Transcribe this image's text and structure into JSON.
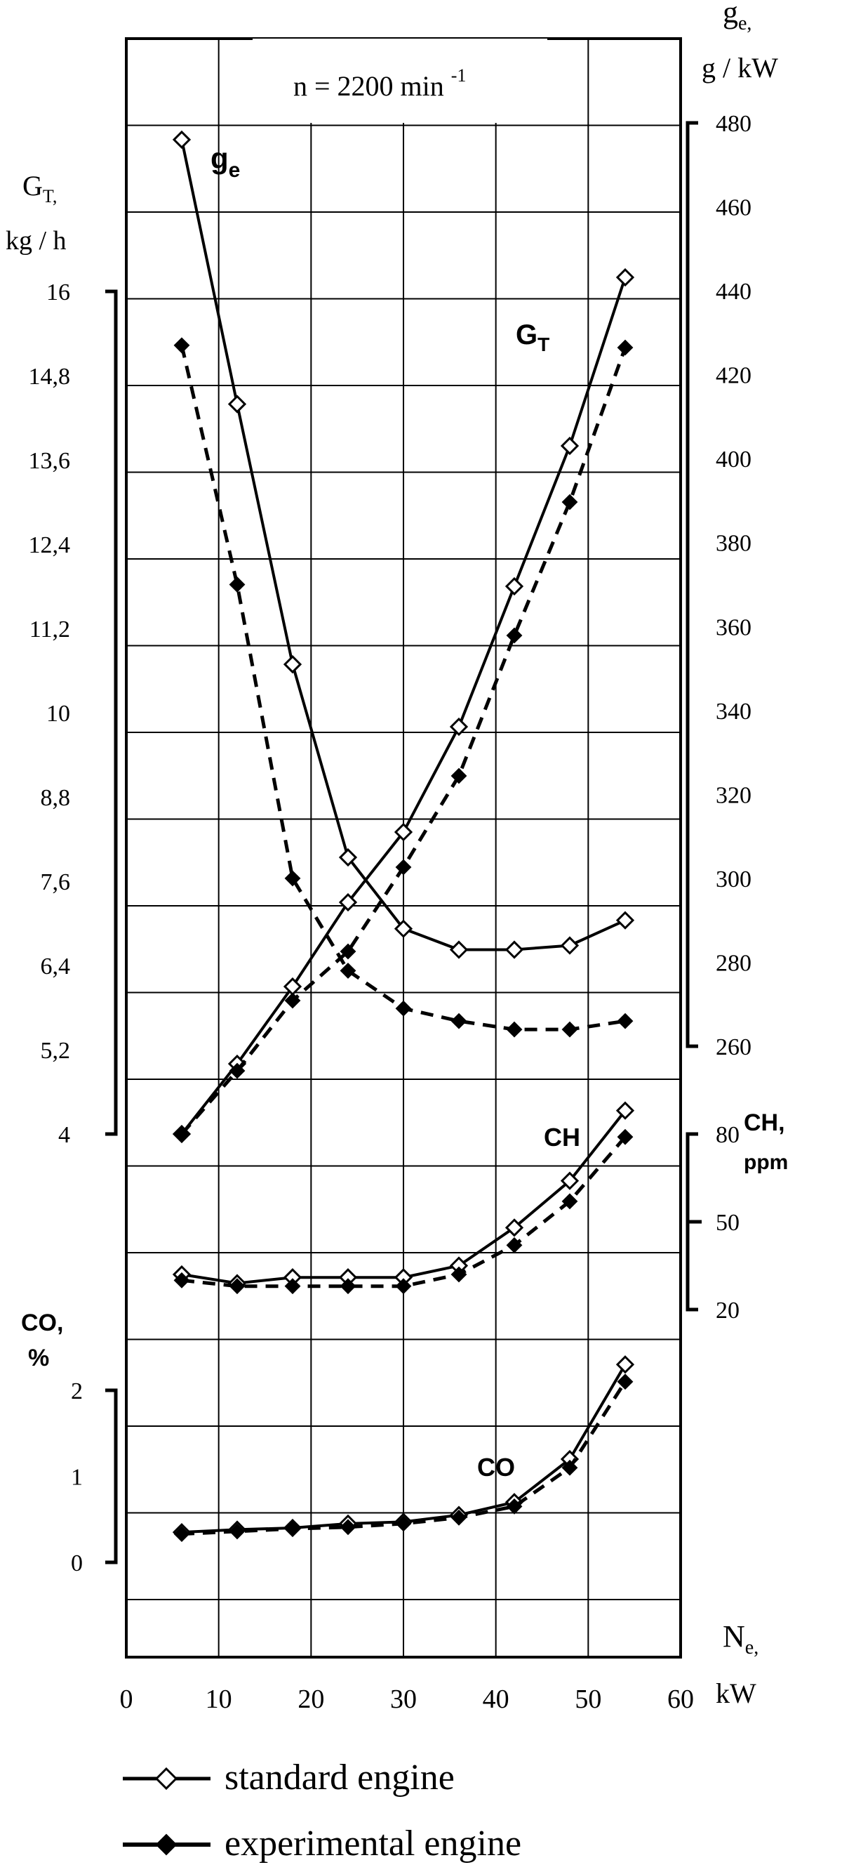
{
  "chart_data": {
    "type": "line",
    "title": "n = 2200  min",
    "title_sup": "-1",
    "x": [
      6,
      12,
      18,
      24,
      30,
      36,
      42,
      48,
      54
    ],
    "x_ticks": [
      "0",
      "10",
      "20",
      "30",
      "40",
      "50",
      "60"
    ],
    "xlim": [
      0,
      60
    ],
    "xlabel_main": "N",
    "xlabel_sub": "e,",
    "xlabel_unit": "kW",
    "axes": {
      "ge": {
        "label_main": "g",
        "label_sub": "e,",
        "label_unit": "g / kW",
        "ylim": [
          260,
          480
        ],
        "ticks": [
          "480",
          "460",
          "440",
          "420",
          "400",
          "380",
          "360",
          "340",
          "320",
          "300",
          "280",
          "260"
        ]
      },
      "GT": {
        "label_main": "G",
        "label_sub": "T,",
        "label_unit": "kg / h",
        "ylim": [
          4,
          16
        ],
        "ticks": [
          "16",
          "14,8",
          "13,6",
          "12,4",
          "11,2",
          "10",
          "8,8",
          "7,6",
          "6,4",
          "5,2",
          "4"
        ]
      },
      "CH": {
        "label_main": "CH,",
        "label_unit": "ppm",
        "ylim": [
          20,
          80
        ],
        "ticks": [
          "80",
          "50",
          "20"
        ]
      },
      "CO": {
        "label_main": "CO,",
        "label_unit": "%",
        "ylim": [
          0,
          2
        ],
        "ticks": [
          "2",
          "1",
          "0"
        ]
      }
    },
    "curve_labels": {
      "ge_main": "g",
      "ge_sub": "e",
      "GT_main": "G",
      "GT_sub": "T",
      "CH": "CH",
      "CO": "CO"
    },
    "series": [
      {
        "name": "standard engine",
        "quantity": "ge",
        "values": [
          476,
          413,
          351,
          305,
          288,
          283,
          283,
          284,
          290
        ]
      },
      {
        "name": "experimental engine",
        "quantity": "ge",
        "values": [
          427,
          370,
          300,
          278,
          269,
          266,
          264,
          264,
          266
        ]
      },
      {
        "name": "standard engine",
        "quantity": "GT",
        "values": [
          4.0,
          5.0,
          6.1,
          7.3,
          8.3,
          9.8,
          11.8,
          13.8,
          16.2
        ]
      },
      {
        "name": "experimental engine",
        "quantity": "GT",
        "values": [
          4.0,
          4.9,
          5.9,
          6.6,
          7.8,
          9.1,
          11.1,
          13.0,
          15.2
        ]
      },
      {
        "name": "standard engine",
        "quantity": "CH",
        "values": [
          32,
          29,
          31,
          31,
          31,
          35,
          48,
          64,
          88
        ]
      },
      {
        "name": "experimental engine",
        "quantity": "CH",
        "values": [
          30,
          28,
          28,
          28,
          28,
          32,
          42,
          57,
          79
        ]
      },
      {
        "name": "standard engine",
        "quantity": "CO",
        "values": [
          0.35,
          0.38,
          0.4,
          0.45,
          0.47,
          0.55,
          0.7,
          1.2,
          2.3
        ]
      },
      {
        "name": "experimental engine",
        "quantity": "CO",
        "values": [
          0.33,
          0.36,
          0.39,
          0.41,
          0.45,
          0.52,
          0.65,
          1.1,
          2.1
        ]
      }
    ],
    "legend": {
      "placement": "bottom",
      "entries": [
        "standard engine",
        "experimental engine"
      ]
    },
    "grid": true
  }
}
